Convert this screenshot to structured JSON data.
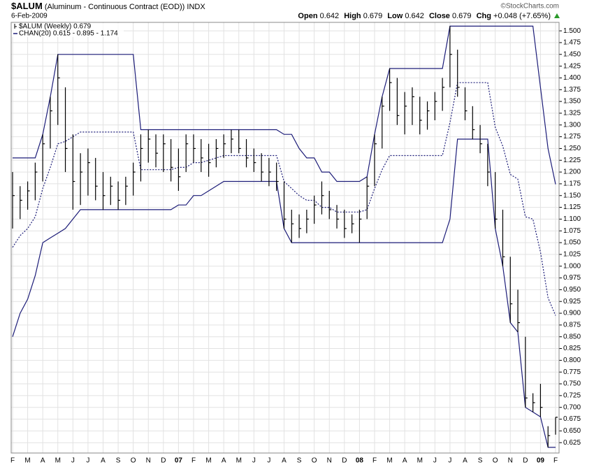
{
  "chart_data": {
    "type": "ohlc",
    "header": {
      "symbol": "$ALUM",
      "name": "(Aluminum - Continuous Contract (EOD))",
      "exchange": "INDX",
      "date": "6-Feb-2009",
      "credit": "©StockCharts.com",
      "quote": [
        {
          "label": "Open",
          "value": "0.642"
        },
        {
          "label": "High",
          "value": "0.679"
        },
        {
          "label": "Low",
          "value": "0.642"
        },
        {
          "label": "Close",
          "value": "0.679"
        },
        {
          "label": "Chg",
          "value": "+0.048 (+7.65%)"
        }
      ]
    },
    "categories": [
      "F",
      "M",
      "A",
      "M",
      "J",
      "J",
      "A",
      "S",
      "O",
      "N",
      "D",
      "07",
      "F",
      "M",
      "A",
      "M",
      "J",
      "J",
      "A",
      "S",
      "O",
      "N",
      "D",
      "08",
      "F",
      "M",
      "A",
      "M",
      "J",
      "J",
      "A",
      "S",
      "O",
      "N",
      "D",
      "09",
      "F"
    ],
    "price": {
      "name": "$ALUM (Weekly) 0.679",
      "color": "#000000",
      "high": [
        1.2,
        1.17,
        1.18,
        1.22,
        1.28,
        1.36,
        1.45,
        1.38,
        1.28,
        1.24,
        1.25,
        1.23,
        1.2,
        1.19,
        1.18,
        1.19,
        1.22,
        1.28,
        1.29,
        1.28,
        1.28,
        1.27,
        1.25,
        1.28,
        1.28,
        1.27,
        1.26,
        1.27,
        1.28,
        1.29,
        1.29,
        1.27,
        1.25,
        1.24,
        1.23,
        1.22,
        1.18,
        1.12,
        1.11,
        1.12,
        1.15,
        1.18,
        1.16,
        1.13,
        1.12,
        1.11,
        1.12,
        1.19,
        1.28,
        1.36,
        1.42,
        1.4,
        1.37,
        1.38,
        1.36,
        1.35,
        1.37,
        1.4,
        1.51,
        1.46,
        1.38,
        1.34,
        1.3,
        1.26,
        1.2,
        1.12,
        1.02,
        0.95,
        0.85,
        0.73,
        0.75,
        0.66,
        0.679
      ],
      "low": [
        1.08,
        1.1,
        1.12,
        1.14,
        1.18,
        1.25,
        1.3,
        1.2,
        1.12,
        1.13,
        1.15,
        1.14,
        1.12,
        1.13,
        1.12,
        1.13,
        1.15,
        1.18,
        1.22,
        1.21,
        1.2,
        1.18,
        1.16,
        1.2,
        1.22,
        1.2,
        1.19,
        1.21,
        1.23,
        1.24,
        1.24,
        1.21,
        1.2,
        1.18,
        1.17,
        1.16,
        1.08,
        1.05,
        1.06,
        1.07,
        1.09,
        1.11,
        1.1,
        1.08,
        1.06,
        1.07,
        1.05,
        1.1,
        1.17,
        1.25,
        1.33,
        1.3,
        1.28,
        1.3,
        1.28,
        1.29,
        1.31,
        1.33,
        1.38,
        1.36,
        1.31,
        1.27,
        1.24,
        1.17,
        1.08,
        1.0,
        0.88,
        0.86,
        0.7,
        0.69,
        0.68,
        0.615,
        0.642
      ],
      "close": [
        1.15,
        1.14,
        1.16,
        1.2,
        1.26,
        1.33,
        1.4,
        1.25,
        1.18,
        1.2,
        1.22,
        1.17,
        1.15,
        1.17,
        1.14,
        1.17,
        1.2,
        1.25,
        1.27,
        1.24,
        1.26,
        1.21,
        1.19,
        1.26,
        1.25,
        1.23,
        1.22,
        1.25,
        1.26,
        1.27,
        1.25,
        1.23,
        1.22,
        1.2,
        1.2,
        1.18,
        1.1,
        1.09,
        1.08,
        1.1,
        1.13,
        1.15,
        1.12,
        1.1,
        1.08,
        1.09,
        1.1,
        1.17,
        1.26,
        1.34,
        1.39,
        1.32,
        1.34,
        1.36,
        1.31,
        1.33,
        1.35,
        1.38,
        1.45,
        1.38,
        1.33,
        1.29,
        1.26,
        1.2,
        1.1,
        1.02,
        0.92,
        0.88,
        0.72,
        0.71,
        0.7,
        0.64,
        0.679
      ]
    },
    "channel": {
      "name": "CHAN(20) 0.615 - 0.895 - 1.174",
      "color": "#1c1c78",
      "upper": [
        1.23,
        1.23,
        1.23,
        1.23,
        1.28,
        1.36,
        1.45,
        1.45,
        1.45,
        1.45,
        1.45,
        1.45,
        1.45,
        1.45,
        1.45,
        1.45,
        1.45,
        1.29,
        1.29,
        1.29,
        1.29,
        1.29,
        1.29,
        1.29,
        1.29,
        1.29,
        1.29,
        1.29,
        1.29,
        1.29,
        1.29,
        1.29,
        1.29,
        1.29,
        1.29,
        1.29,
        1.28,
        1.28,
        1.25,
        1.23,
        1.23,
        1.2,
        1.2,
        1.18,
        1.18,
        1.18,
        1.18,
        1.19,
        1.28,
        1.36,
        1.42,
        1.42,
        1.42,
        1.42,
        1.42,
        1.42,
        1.42,
        1.42,
        1.51,
        1.51,
        1.51,
        1.51,
        1.51,
        1.51,
        1.51,
        1.51,
        1.51,
        1.51,
        1.51,
        1.51,
        1.38,
        1.25,
        1.174
      ],
      "middle": [
        1.04,
        1.065,
        1.08,
        1.105,
        1.165,
        1.21,
        1.26,
        1.265,
        1.275,
        1.285,
        1.285,
        1.285,
        1.285,
        1.285,
        1.285,
        1.285,
        1.285,
        1.205,
        1.205,
        1.205,
        1.205,
        1.205,
        1.21,
        1.21,
        1.22,
        1.22,
        1.225,
        1.23,
        1.235,
        1.235,
        1.235,
        1.235,
        1.235,
        1.235,
        1.235,
        1.235,
        1.18,
        1.165,
        1.15,
        1.14,
        1.14,
        1.125,
        1.125,
        1.115,
        1.115,
        1.115,
        1.115,
        1.12,
        1.165,
        1.205,
        1.235,
        1.235,
        1.235,
        1.235,
        1.235,
        1.235,
        1.235,
        1.235,
        1.305,
        1.39,
        1.39,
        1.39,
        1.39,
        1.39,
        1.295,
        1.255,
        1.195,
        1.185,
        1.105,
        1.1,
        1.03,
        0.933,
        0.895
      ],
      "lower": [
        0.85,
        0.9,
        0.93,
        0.98,
        1.05,
        1.06,
        1.07,
        1.08,
        1.1,
        1.12,
        1.12,
        1.12,
        1.12,
        1.12,
        1.12,
        1.12,
        1.12,
        1.12,
        1.12,
        1.12,
        1.12,
        1.12,
        1.13,
        1.13,
        1.15,
        1.15,
        1.16,
        1.17,
        1.18,
        1.18,
        1.18,
        1.18,
        1.18,
        1.18,
        1.18,
        1.18,
        1.08,
        1.05,
        1.05,
        1.05,
        1.05,
        1.05,
        1.05,
        1.05,
        1.05,
        1.05,
        1.05,
        1.05,
        1.05,
        1.05,
        1.05,
        1.05,
        1.05,
        1.05,
        1.05,
        1.05,
        1.05,
        1.05,
        1.1,
        1.27,
        1.27,
        1.27,
        1.27,
        1.27,
        1.08,
        1.0,
        0.88,
        0.86,
        0.7,
        0.69,
        0.68,
        0.615,
        0.615
      ]
    },
    "ylim": [
      0.603,
      1.518
    ],
    "yticks": [
      {
        "value": 0.625,
        "label": "0.625"
      },
      {
        "value": 0.65,
        "label": "0.650"
      },
      {
        "value": 0.675,
        "label": "0.675"
      },
      {
        "value": 0.7,
        "label": "0.700"
      },
      {
        "value": 0.725,
        "label": "0.725"
      },
      {
        "value": 0.75,
        "label": "0.750"
      },
      {
        "value": 0.775,
        "label": "0.775"
      },
      {
        "value": 0.8,
        "label": "0.800"
      },
      {
        "value": 0.825,
        "label": "0.825"
      },
      {
        "value": 0.85,
        "label": "0.850"
      },
      {
        "value": 0.875,
        "label": "0.875"
      },
      {
        "value": 0.9,
        "label": "0.900"
      },
      {
        "value": 0.925,
        "label": "0.925"
      },
      {
        "value": 0.95,
        "label": "0.950"
      },
      {
        "value": 0.975,
        "label": "0.975"
      },
      {
        "value": 1.0,
        "label": "1.000"
      },
      {
        "value": 1.025,
        "label": "1.025"
      },
      {
        "value": 1.05,
        "label": "1.050"
      },
      {
        "value": 1.075,
        "label": "1.075"
      },
      {
        "value": 1.1,
        "label": "1.100"
      },
      {
        "value": 1.125,
        "label": "1.125"
      },
      {
        "value": 1.15,
        "label": "1.150"
      },
      {
        "value": 1.175,
        "label": "1.175"
      },
      {
        "value": 1.2,
        "label": "1.200"
      },
      {
        "value": 1.225,
        "label": "1.225"
      },
      {
        "value": 1.25,
        "label": "1.250"
      },
      {
        "value": 1.275,
        "label": "1.275"
      },
      {
        "value": 1.3,
        "label": "1.300"
      },
      {
        "value": 1.325,
        "label": "1.325"
      },
      {
        "value": 1.35,
        "label": "1.350"
      },
      {
        "value": 1.375,
        "label": "1.375"
      },
      {
        "value": 1.4,
        "label": "1.400"
      },
      {
        "value": 1.425,
        "label": "1.425"
      },
      {
        "value": 1.45,
        "label": "1.450"
      },
      {
        "value": 1.475,
        "label": "1.475"
      },
      {
        "value": 1.5,
        "label": "1.500"
      }
    ],
    "grid": true
  }
}
